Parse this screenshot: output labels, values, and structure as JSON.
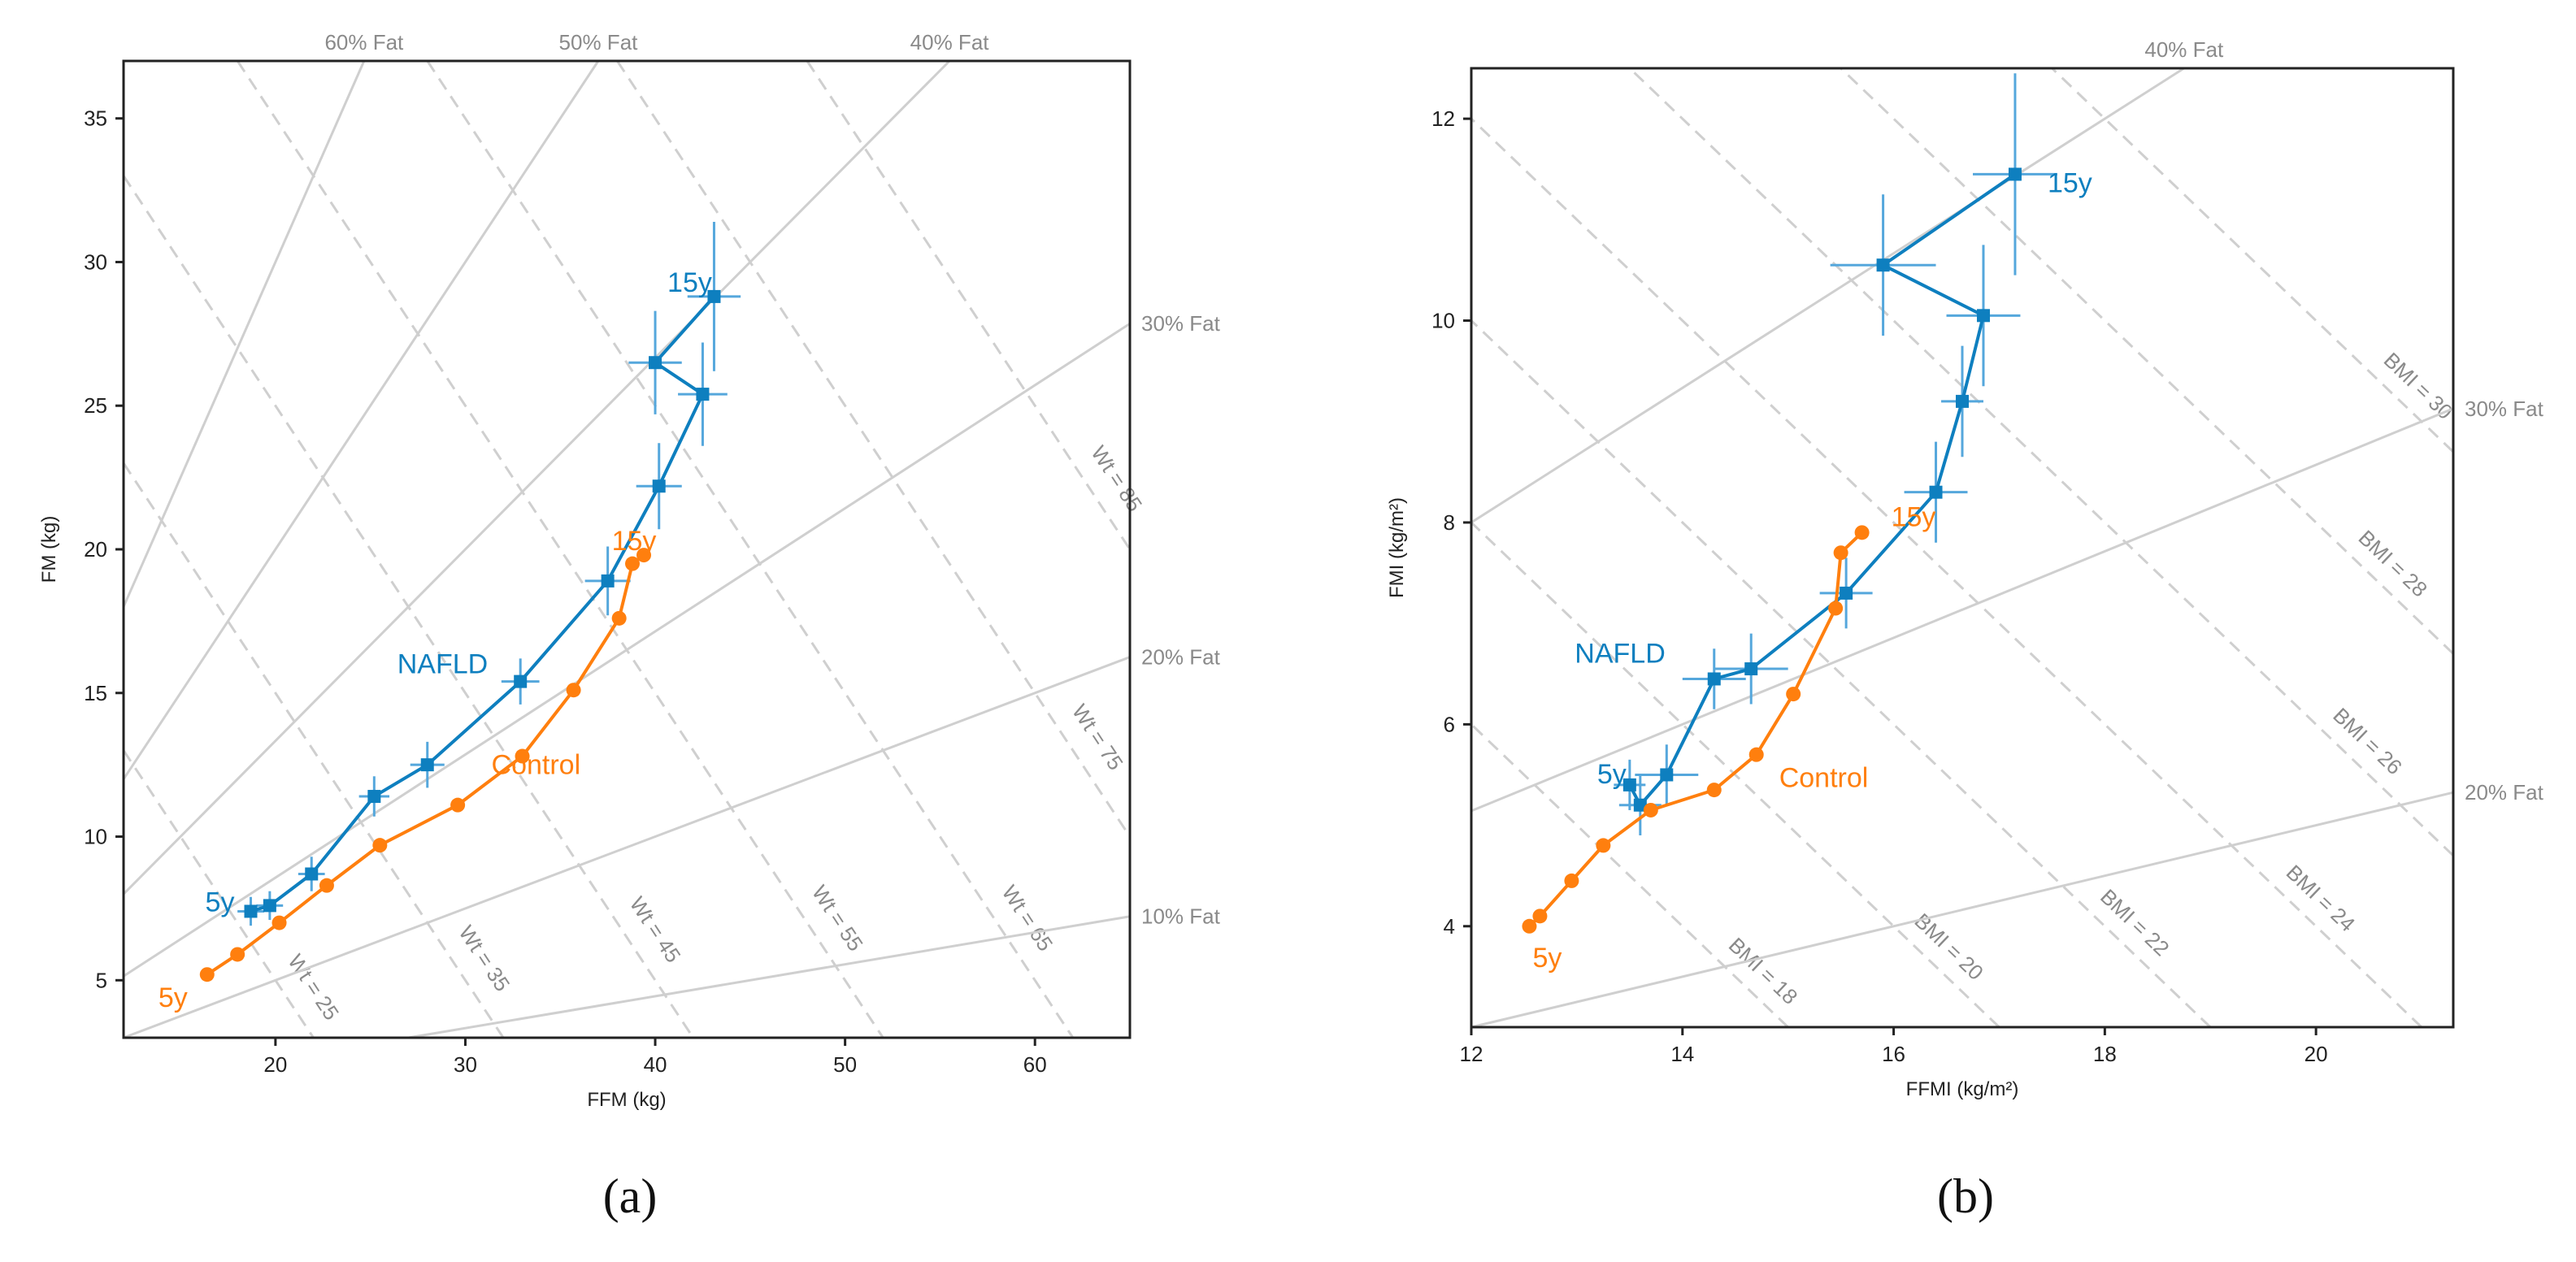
{
  "colors": {
    "nafld": "#1f77b4",
    "nafld_line": "#0e7fbf",
    "nafld_err": "#55a7dc",
    "control": "#ff7f0e",
    "ref": "#cfcfcf",
    "ref_text": "#8a8a8a"
  },
  "chart_data": [
    {
      "panel": "(a)",
      "type": "line",
      "xlabel": "FFM (kg)",
      "ylabel": "FM (kg)",
      "xlim": [
        12,
        65
      ],
      "ylim": [
        3,
        37
      ],
      "xticks": [
        20,
        30,
        40,
        50,
        60
      ],
      "yticks": [
        5,
        10,
        15,
        20,
        25,
        30,
        35
      ],
      "fat_lines": [
        {
          "pct": 60,
          "label": "60% Fat"
        },
        {
          "pct": 50,
          "label": "50% Fat"
        },
        {
          "pct": 40,
          "label": "40% Fat"
        },
        {
          "pct": 30,
          "label": "30% Fat"
        },
        {
          "pct": 20,
          "label": "20% Fat"
        },
        {
          "pct": 10,
          "label": "10% Fat"
        }
      ],
      "iso_lines": [
        {
          "value": 25,
          "label": "Wt = 25"
        },
        {
          "value": 35,
          "label": "Wt = 35"
        },
        {
          "value": 45,
          "label": "Wt = 45"
        },
        {
          "value": 55,
          "label": "Wt = 55"
        },
        {
          "value": 65,
          "label": "Wt = 65"
        },
        {
          "value": 75,
          "label": "Wt = 75"
        },
        {
          "value": 85,
          "label": "Wt = 85"
        }
      ],
      "series": [
        {
          "name": "NAFLD",
          "x": [
            18.7,
            19.7,
            21.9,
            25.2,
            28.0,
            32.9,
            37.5,
            40.2,
            42.5,
            40.0,
            43.1
          ],
          "y": [
            7.4,
            7.6,
            8.7,
            11.4,
            12.5,
            15.4,
            18.9,
            22.2,
            25.4,
            26.5,
            28.8
          ],
          "xerr": [
            0.7,
            0.7,
            0.7,
            0.8,
            0.9,
            1.0,
            1.2,
            1.2,
            1.3,
            1.4,
            1.4
          ],
          "yerr": [
            0.5,
            0.5,
            0.6,
            0.7,
            0.8,
            0.8,
            1.2,
            1.5,
            1.8,
            1.8,
            2.6
          ],
          "labels": [
            {
              "text": "5y",
              "index": 0
            },
            {
              "text": "15y",
              "index": 10
            },
            {
              "text": "NAFLD",
              "index": 5
            }
          ]
        },
        {
          "name": "Control",
          "x": [
            16.4,
            18.0,
            20.2,
            22.7,
            25.5,
            29.6,
            33.0,
            35.7,
            38.1,
            38.8,
            39.4
          ],
          "y": [
            5.2,
            5.9,
            7.0,
            8.3,
            9.7,
            11.1,
            12.8,
            15.1,
            17.6,
            19.5,
            19.8
          ],
          "labels": [
            {
              "text": "5y",
              "index": 0
            },
            {
              "text": "15y",
              "index": 10
            },
            {
              "text": "Control",
              "index": 6
            }
          ]
        }
      ]
    },
    {
      "panel": "(b)",
      "type": "line",
      "xlabel": "FFMI (kg/m²)",
      "ylabel": "FMI (kg/m²)",
      "xlim": [
        12,
        21.3
      ],
      "ylim": [
        3,
        12.5
      ],
      "xticks": [
        12,
        14,
        16,
        18,
        20
      ],
      "yticks": [
        4,
        6,
        8,
        10,
        12
      ],
      "fat_lines": [
        {
          "pct": 40,
          "label": "40% Fat"
        },
        {
          "pct": 30,
          "label": "30% Fat"
        },
        {
          "pct": 20,
          "label": "20% Fat"
        }
      ],
      "iso_lines": [
        {
          "value": 18,
          "label": "BMI = 18"
        },
        {
          "value": 20,
          "label": "BMI = 20"
        },
        {
          "value": 22,
          "label": "BMI = 22"
        },
        {
          "value": 24,
          "label": "BMI = 24"
        },
        {
          "value": 26,
          "label": "BMI = 26"
        },
        {
          "value": 28,
          "label": "BMI = 28"
        },
        {
          "value": 30,
          "label": "BMI = 30"
        }
      ],
      "series": [
        {
          "name": "NAFLD",
          "x": [
            13.5,
            13.6,
            13.85,
            14.3,
            14.65,
            15.55,
            16.4,
            16.65,
            16.85,
            15.9,
            17.15
          ],
          "y": [
            5.4,
            5.2,
            5.5,
            6.45,
            6.55,
            7.3,
            8.3,
            9.2,
            10.05,
            10.55,
            11.45
          ],
          "xerr": [
            0.15,
            0.2,
            0.3,
            0.3,
            0.35,
            0.25,
            0.3,
            0.2,
            0.35,
            0.5,
            0.4
          ],
          "yerr": [
            0.25,
            0.3,
            0.3,
            0.3,
            0.35,
            0.35,
            0.5,
            0.55,
            0.7,
            0.7,
            1.0
          ],
          "labels": [
            {
              "text": "5y",
              "index": 0
            },
            {
              "text": "15y",
              "index": 10
            },
            {
              "text": "NAFLD",
              "index": 3
            }
          ]
        },
        {
          "name": "Control",
          "x": [
            12.55,
            12.65,
            12.95,
            13.25,
            13.7,
            14.3,
            14.7,
            15.05,
            15.45,
            15.5,
            15.7
          ],
          "y": [
            4.0,
            4.1,
            4.45,
            4.8,
            5.15,
            5.35,
            5.7,
            6.3,
            7.15,
            7.7,
            7.9
          ],
          "labels": [
            {
              "text": "5y",
              "index": 0
            },
            {
              "text": "15y",
              "index": 10
            },
            {
              "text": "Control",
              "index": 6
            }
          ]
        }
      ]
    }
  ]
}
